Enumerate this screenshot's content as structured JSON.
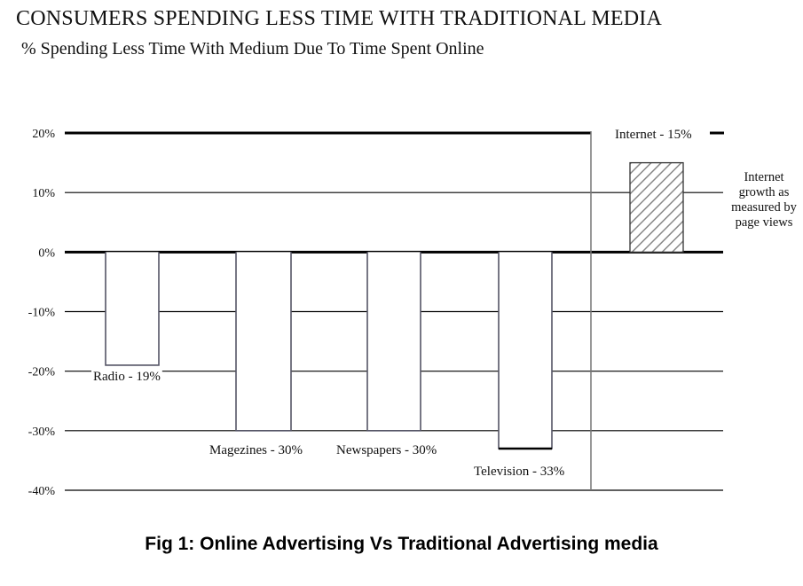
{
  "figure": {
    "title": "CONSUMERS SPENDING LESS TIME WITH TRADITIONAL MEDIA",
    "subtitle": "% Spending Less Time With Medium Due To Time Spent Online",
    "caption": "Fig 1: Online Advertising Vs Traditional Advertising media"
  },
  "chart_data": {
    "type": "bar",
    "title": "CONSUMERS SPENDING LESS TIME WITH TRADITIONAL MEDIA",
    "subtitle": "% Spending Less Time With Medium Due To Time Spent Online",
    "ylim": [
      -40,
      20
    ],
    "yticks": [
      20,
      10,
      0,
      -10,
      -20,
      -30,
      -40
    ],
    "ytick_labels": [
      "20%",
      "10%",
      "0%",
      "-10%",
      "-20%",
      "-30%",
      "-40%"
    ],
    "grid": true,
    "bars": [
      {
        "label": "Radio - 19%",
        "value": -19,
        "fill": "#ffffff",
        "pattern": "none"
      },
      {
        "label": "Magezines - 30%",
        "value": -30,
        "fill": "#ffffff",
        "pattern": "none"
      },
      {
        "label": "Newspapers - 30%",
        "value": -30,
        "fill": "#ffffff",
        "pattern": "none"
      },
      {
        "label": "Television - 33%",
        "value": -33,
        "fill": "#ffffff",
        "pattern": "none"
      },
      {
        "label": "Internet - 15%",
        "value": 15,
        "fill": "#ffffff",
        "pattern": "diagonal-hatch"
      }
    ],
    "annotation": [
      "Internet",
      "growth as",
      "measured by",
      "page views"
    ],
    "colors": {
      "axis": "#000000",
      "grid": "#000000",
      "bar_outline": "#555566",
      "divider": "#777777",
      "hatch": "#888888"
    }
  }
}
